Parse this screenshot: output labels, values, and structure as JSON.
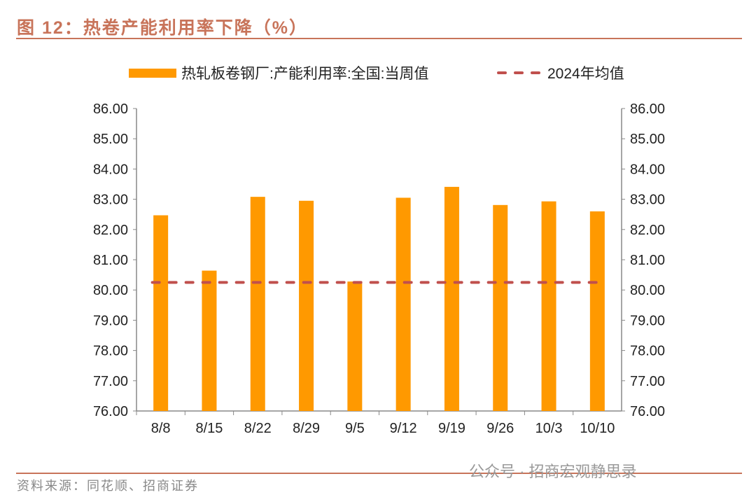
{
  "header": {
    "title": "图 12：热卷产能利用率下降（%）"
  },
  "footer": {
    "source": "资料来源：同花顺、招商证券",
    "watermark": "公众号 · 招商宏观静思录"
  },
  "colors": {
    "bar": "#ff9900",
    "avg": "#c0504d",
    "accent": "#c8745a"
  },
  "chart_data": {
    "type": "bar",
    "title": "热卷产能利用率下降（%）",
    "categories": [
      "8/8",
      "8/15",
      "8/22",
      "8/29",
      "9/5",
      "9/12",
      "9/19",
      "9/26",
      "10/3",
      "10/10"
    ],
    "series": [
      {
        "name": "热轧板卷钢厂:产能利用率:全国:当周值",
        "type": "bar",
        "values": [
          82.47,
          80.64,
          83.08,
          82.95,
          80.28,
          83.05,
          83.41,
          82.81,
          82.93,
          82.6
        ]
      },
      {
        "name": "2024年均值",
        "type": "line-dashed",
        "values": [
          80.25,
          80.25,
          80.25,
          80.25,
          80.25,
          80.25,
          80.25,
          80.25,
          80.25,
          80.25
        ]
      }
    ],
    "ylim": [
      76,
      86
    ],
    "yticks": [
      "76.00",
      "77.00",
      "78.00",
      "79.00",
      "80.00",
      "81.00",
      "82.00",
      "83.00",
      "84.00",
      "85.00",
      "86.00"
    ],
    "legend_position": "top",
    "grid": false,
    "xlabel": "",
    "ylabel": ""
  }
}
